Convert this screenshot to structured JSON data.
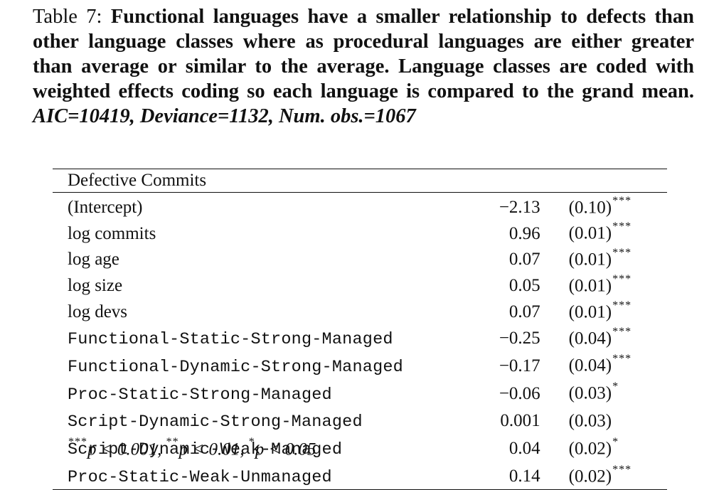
{
  "caption": {
    "label": "Table 7:",
    "text": "Functional languages have a smaller relationship to defects than other language classes where as procedural languages are either greater than average or similar to the average. Language classes are coded with weighted effects coding so each language is compared to the grand mean.",
    "stats": "AIC=10419, Deviance=1132, Num. obs.=1067"
  },
  "table": {
    "header": "Defective Commits",
    "rows": [
      {
        "term": "(Intercept)",
        "coef": "−2.13",
        "se": "(0.10)",
        "stars": "***"
      },
      {
        "term": "log commits",
        "coef": "0.96",
        "se": "(0.01)",
        "stars": "***"
      },
      {
        "term": "log age",
        "coef": "0.07",
        "se": "(0.01)",
        "stars": "***"
      },
      {
        "term": "log size",
        "coef": "0.05",
        "se": "(0.01)",
        "stars": "***"
      },
      {
        "term": "log devs",
        "coef": "0.07",
        "se": "(0.01)",
        "stars": "***"
      },
      {
        "term": "Functional-Static-Strong-Managed",
        "coef": "−0.25",
        "se": "(0.04)",
        "stars": "***"
      },
      {
        "term": "Functional-Dynamic-Strong-Managed",
        "coef": "−0.17",
        "se": "(0.04)",
        "stars": "***"
      },
      {
        "term": "Proc-Static-Strong-Managed",
        "coef": "−0.06",
        "se": "(0.03)",
        "stars": "*"
      },
      {
        "term": "Script-Dynamic-Strong-Managed",
        "coef": "0.001",
        "se": "(0.03)",
        "stars": ""
      },
      {
        "term": "Script-Dynamic-Weak-Managed",
        "coef": "0.04",
        "se": "(0.02)",
        "stars": "*"
      },
      {
        "term": "Proc-Static-Weak-Unmanaged",
        "coef": "0.14",
        "se": "(0.02)",
        "stars": "***"
      }
    ]
  },
  "footnote": {
    "s1": "***",
    "t1": "p < 0.001, ",
    "s2": "**",
    "t2": "p < 0.01, ",
    "s3": "*",
    "t3": "p < 0.05"
  }
}
